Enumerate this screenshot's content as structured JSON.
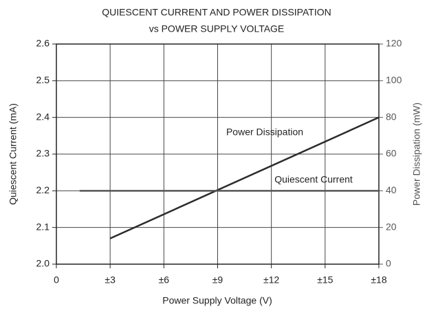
{
  "chart_data": {
    "type": "line",
    "title": "QUIESCENT CURRENT AND POWER DISSIPATION",
    "subtitle": "vs POWER SUPPLY VOLTAGE",
    "x_label": "Power Supply Voltage (V)",
    "y_label": "Quiescent Current (mA)",
    "y2_label": "Power Dissipation (mW)",
    "xlim": [
      0,
      18
    ],
    "xticks": [
      0,
      {
        "value": 3,
        "label": "±3"
      },
      {
        "value": 6,
        "label": "±6"
      },
      {
        "value": 9,
        "label": "±9"
      },
      {
        "value": 12,
        "label": "±12"
      },
      {
        "value": 15,
        "label": "±15"
      },
      {
        "value": 18,
        "label": "±18"
      }
    ],
    "ylim": [
      2.0,
      2.6
    ],
    "yticks": [
      {
        "value": 2.0,
        "label": "2.0"
      },
      2.1,
      2.2,
      2.3,
      2.4,
      2.5,
      2.6
    ],
    "y2lim": [
      0,
      120
    ],
    "y2ticks": [
      0,
      20,
      40,
      60,
      80,
      100,
      120
    ],
    "grid": true,
    "series": [
      {
        "name": "Power Dissipation",
        "color": "#2b2b2b",
        "axis": "y2",
        "x": [
          3,
          18
        ],
        "values": [
          14,
          80
        ]
      },
      {
        "name": "Quiescent Current",
        "color": "#555555",
        "x": [
          1.3,
          18
        ],
        "values": [
          2.2,
          2.2
        ]
      }
    ]
  }
}
